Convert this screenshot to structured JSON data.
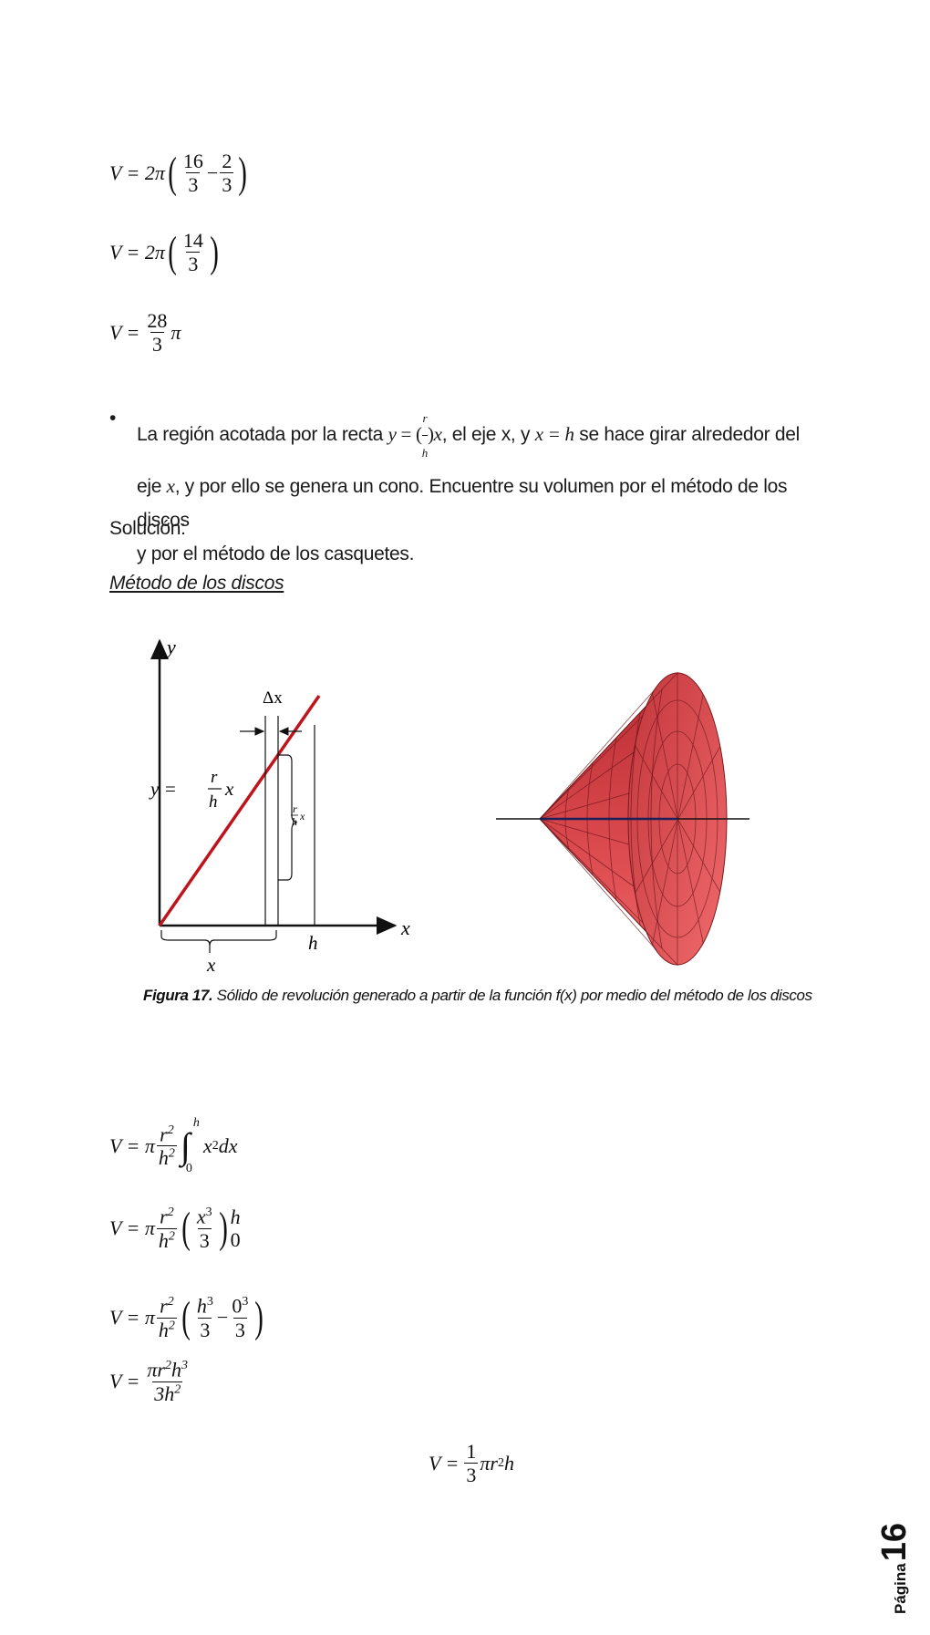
{
  "equations_top": {
    "eq1": {
      "lhs": "V = 2π",
      "a_num": "16",
      "a_den": "3",
      "minus": "−",
      "b_num": "2",
      "b_den": "3"
    },
    "eq2": {
      "lhs": "V = 2π",
      "a_num": "14",
      "a_den": "3"
    },
    "eq3": {
      "lhs": "V =",
      "num": "28",
      "den": "3",
      "tail": "π"
    }
  },
  "bullet": {
    "part1": "La región acotada por la recta ",
    "math_y": "y",
    "math_eq": " = ",
    "math_r": "r",
    "math_h": "h",
    "math_x": "x",
    "part2": ", el eje x, y ",
    "math_xh": "x = h",
    "part3": " se hace girar alrededor del",
    "line2_a": "eje ",
    "line2_x": "x",
    "line2_b": ", y por ello se genera un cono. Encuentre su volumen por el método de los discos",
    "line3": "y por el método de los casquetes."
  },
  "solucion": "Solución:",
  "metodo": "Método de los discos",
  "figure": {
    "axis_y": "y",
    "axis_x": "x",
    "delta_x": "Δx",
    "line_label_lhs": "y =",
    "line_label_r": "r",
    "line_label_h": "h",
    "line_label_x": "x",
    "radius_r": "r",
    "radius_h": "h",
    "radius_x": "x",
    "h_label": "h",
    "x_label": "x",
    "line_color": "#c0141c",
    "cone_color": "#d9444a"
  },
  "caption": {
    "bold": "Figura 17.",
    "text": " Sólido de revolución generado a partir de la función f(x) por medio del método de los discos"
  },
  "equations_bottom": {
    "e1": {
      "lhs": "V = π",
      "num": "r",
      "num_sup": "2",
      "den": "h",
      "den_sup": "2",
      "int_top": "h",
      "int_bot": "0",
      "integrand": "x",
      "integrand_sup": "2",
      "dx": " dx"
    },
    "e2": {
      "lhs": "V = π",
      "num": "r",
      "num_sup": "2",
      "den": "h",
      "den_sup": "2",
      "in_num": "x",
      "in_num_sup": "3",
      "in_den": "3",
      "upper": "h",
      "lower": "0"
    },
    "e3": {
      "lhs": "V = π",
      "num": "r",
      "num_sup": "2",
      "den": "h",
      "den_sup": "2",
      "a_num": "h",
      "a_sup": "3",
      "a_den": "3",
      "minus": "−",
      "b_num": "0",
      "b_sup": "3",
      "b_den": "3"
    },
    "e4": {
      "lhs": "V =",
      "num": "πr",
      "num_sup1": "2",
      "num_mid": "h",
      "num_sup2": "3",
      "den": "3h",
      "den_sup": "2"
    },
    "final": {
      "lhs": "V =",
      "num": "1",
      "den": "3",
      "tail": "πr",
      "tail_sup": "2",
      "tail_end": "h"
    }
  },
  "page": {
    "label": "Página",
    "number": "16"
  }
}
